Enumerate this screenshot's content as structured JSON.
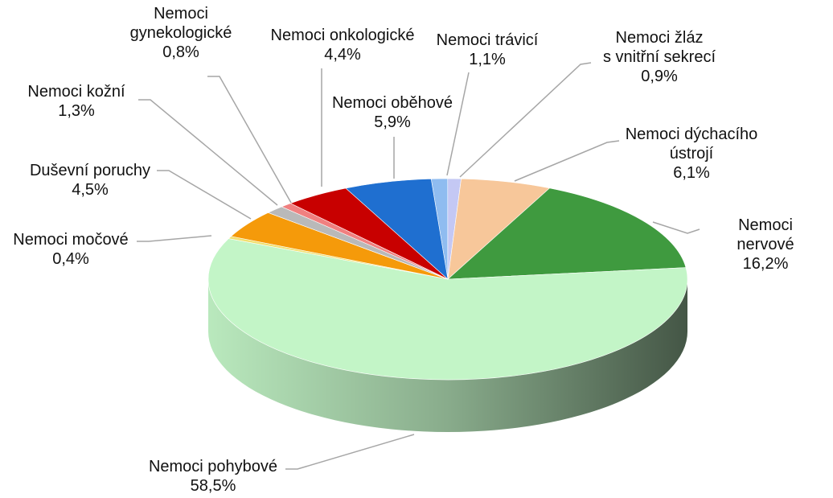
{
  "chart_data": {
    "type": "pie",
    "categories": [
      "Nemoci trávicí",
      "Nemoci žláz\ns vnitřní sekrecí",
      "Nemoci dýchacího\nústrojí",
      "Nemoci nervové",
      "Nemoci pohybové",
      "Nemoci močové",
      "Duševní poruchy",
      "Nemoci kožní",
      "Nemoci\ngynekologické",
      "Nemoci onkologické",
      "Nemoci oběhové"
    ],
    "values": [
      1.1,
      0.9,
      6.1,
      16.2,
      58.5,
      0.4,
      4.5,
      1.3,
      0.8,
      4.4,
      5.9
    ],
    "value_labels": [
      "1,1%",
      "0,9%",
      "6,1%",
      "16,2%",
      "58,5%",
      "0,4%",
      "4,5%",
      "1,3%",
      "0,8%",
      "4,4%",
      "5,9%"
    ],
    "colors": [
      "#8fbcf0",
      "#c4c8f4",
      "#f7c79a",
      "#3f9a3f",
      "#c3f5c7",
      "#f0e070",
      "#f59a0a",
      "#b9b9b9",
      "#f08080",
      "#c80000",
      "#1f6fd0"
    ]
  }
}
